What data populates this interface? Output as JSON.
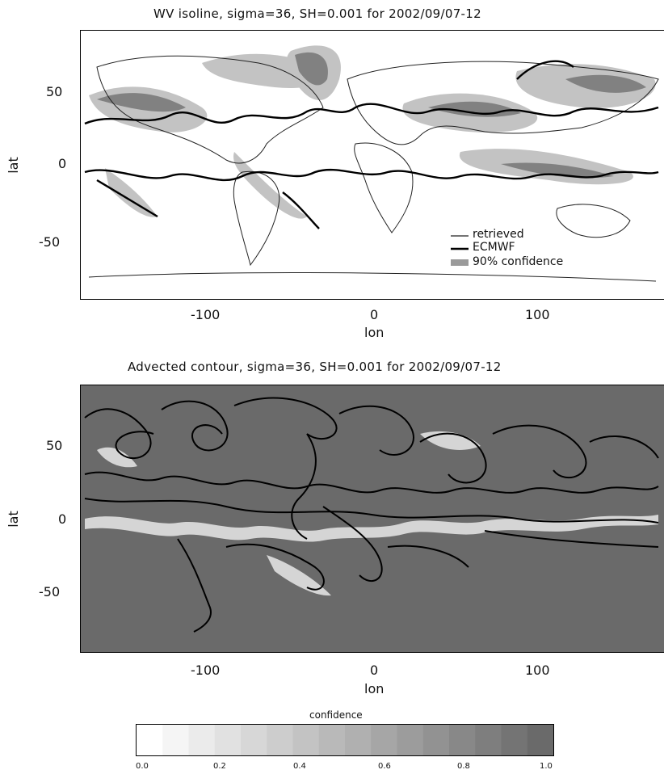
{
  "chart_data": [
    {
      "type": "heatmap",
      "title": "WV isoline, sigma=36, SH=0.001 for 2002/09/07-12",
      "xlabel": "lon",
      "ylabel": "lat",
      "xlim": [
        -180,
        180
      ],
      "ylim": [
        -90,
        90
      ],
      "xticks": [
        "-100",
        "0",
        "100"
      ],
      "yticks": [
        "50",
        "0",
        "-50"
      ],
      "legend": {
        "placement": "lower-right",
        "entries": [
          "retrieved",
          "ECMWF",
          "90% confidence"
        ]
      },
      "colors": {
        "retrieved": "#222222",
        "ECMWF": "#000000",
        "confidence": "#9a9a9a",
        "background": "#ffffff"
      }
    },
    {
      "type": "heatmap",
      "title": "Advected contour, sigma=36, SH=0.001 for 2002/09/07-12",
      "xlabel": "lon",
      "ylabel": "lat",
      "xlim": [
        -180,
        180
      ],
      "ylim": [
        -90,
        90
      ],
      "xticks": [
        "-100",
        "0",
        "100"
      ],
      "yticks": [
        "50",
        "0",
        "-50"
      ],
      "colors": {
        "background": "#6a6a6a",
        "contour": "#000000",
        "highlight": "#ececec"
      }
    }
  ],
  "colorbar": {
    "label": "confidence",
    "ticks": [
      "0.0",
      "0.2",
      "0.4",
      "0.6",
      "0.8",
      "1.0"
    ],
    "range": [
      0,
      1
    ],
    "steps": 16,
    "color_low": "#ffffff",
    "color_high": "#6a6a6a"
  }
}
